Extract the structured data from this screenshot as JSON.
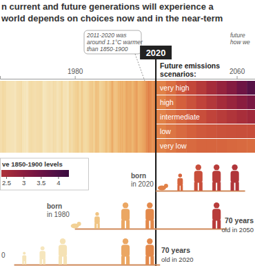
{
  "chart_data": {
    "type": "stripes",
    "title": [
      "n current and future generations will experience a",
      "world depends on choices now and in the near-term"
    ],
    "subtitle": [
      "Future emissions",
      "scenarios:"
    ],
    "annotations": [
      {
        "text": [
          "2011-2020 was",
          "around 1.1°C warmer",
          "than 1850-1900"
        ]
      },
      {
        "text": [
          "future",
          "how we"
        ]
      }
    ],
    "xlim": [
      1943,
      2069
    ],
    "xticks": [
      1980,
      2020,
      2060
    ],
    "x": [
      1943,
      1944,
      1945,
      1946,
      1947,
      1948,
      1949,
      1950,
      1951,
      1952,
      1953,
      1954,
      1955,
      1956,
      1957,
      1958,
      1959,
      1960,
      1961,
      1962,
      1963,
      1964,
      1965,
      1966,
      1967,
      1968,
      1969,
      1970,
      1971,
      1972,
      1973,
      1974,
      1975,
      1976,
      1977,
      1978,
      1979,
      1980,
      1981,
      1982,
      1983,
      1984,
      1985,
      1986,
      1987,
      1988,
      1989,
      1990,
      1991,
      1992,
      1993,
      1994,
      1995,
      1996,
      1997,
      1998,
      1999,
      2000,
      2001,
      2002,
      2003,
      2004,
      2005,
      2006,
      2007,
      2008,
      2009,
      2010,
      2011,
      2012,
      2013,
      2014,
      2015,
      2016,
      2017,
      2018,
      2019
    ],
    "values": [
      0.32,
      0.42,
      0.38,
      0.25,
      0.24,
      0.22,
      0.21,
      0.15,
      0.3,
      0.33,
      0.38,
      0.2,
      0.18,
      0.13,
      0.35,
      0.38,
      0.33,
      0.3,
      0.35,
      0.36,
      0.38,
      0.14,
      0.18,
      0.26,
      0.3,
      0.24,
      0.36,
      0.33,
      0.21,
      0.3,
      0.44,
      0.22,
      0.25,
      0.16,
      0.45,
      0.36,
      0.48,
      0.55,
      0.6,
      0.42,
      0.62,
      0.44,
      0.42,
      0.5,
      0.63,
      0.66,
      0.56,
      0.75,
      0.71,
      0.52,
      0.57,
      0.63,
      0.77,
      0.64,
      0.78,
      0.96,
      0.74,
      0.74,
      0.88,
      0.93,
      0.93,
      0.88,
      0.99,
      0.95,
      0.97,
      0.87,
      0.97,
      1.04,
      0.91,
      0.94,
      0.99,
      1.04,
      1.16,
      1.28,
      1.19,
      1.11,
      1.22
    ],
    "series": [
      {
        "name": "very high",
        "x": [
          2020,
          2025,
          2030,
          2035,
          2040,
          2045,
          2050,
          2055,
          2060,
          2065
        ],
        "values": [
          1.25,
          1.45,
          1.7,
          1.95,
          2.2,
          2.5,
          2.8,
          3.1,
          3.45,
          3.8
        ]
      },
      {
        "name": "high",
        "x": [
          2020,
          2025,
          2030,
          2035,
          2040,
          2045,
          2050,
          2055,
          2060,
          2065
        ],
        "values": [
          1.25,
          1.42,
          1.6,
          1.8,
          2.0,
          2.25,
          2.5,
          2.75,
          3.0,
          3.25
        ]
      },
      {
        "name": "intermediate",
        "x": [
          2020,
          2025,
          2030,
          2035,
          2040,
          2045,
          2050,
          2055,
          2060,
          2065
        ],
        "values": [
          1.25,
          1.4,
          1.55,
          1.7,
          1.85,
          2.0,
          2.15,
          2.3,
          2.45,
          2.6
        ]
      },
      {
        "name": "low",
        "x": [
          2020,
          2025,
          2030,
          2035,
          2040,
          2045,
          2050,
          2055,
          2060,
          2065
        ],
        "values": [
          1.25,
          1.38,
          1.5,
          1.6,
          1.7,
          1.75,
          1.8,
          1.82,
          1.84,
          1.85
        ]
      },
      {
        "name": "very low",
        "x": [
          2020,
          2025,
          2030,
          2035,
          2040,
          2045,
          2050,
          2055,
          2060,
          2065
        ],
        "values": [
          1.25,
          1.35,
          1.45,
          1.5,
          1.55,
          1.55,
          1.55,
          1.52,
          1.5,
          1.48
        ]
      }
    ],
    "colorbar": {
      "label": "ve 1850-1900 levels",
      "range": [
        2.35,
        4.3
      ],
      "ticks": [
        2.5,
        3,
        3.5,
        4
      ]
    },
    "generations": [
      {
        "label": [
          "born",
          "in 2020"
        ],
        "birth_year": 2020,
        "ages": [
          3,
          12,
          21,
          30,
          39
        ]
      },
      {
        "label": [
          "born",
          "in 1980"
        ],
        "birth_year": 1980,
        "ages": [
          0,
          11,
          25,
          37,
          70
        ],
        "note": [
          "70 years",
          "old in 2050"
        ]
      },
      {
        "label": [
          "0"
        ],
        "birth_year": 1950,
        "ages": [
          5,
          14,
          24,
          55,
          67
        ],
        "note": [
          "70 years",
          "old in 2020"
        ]
      }
    ]
  }
}
